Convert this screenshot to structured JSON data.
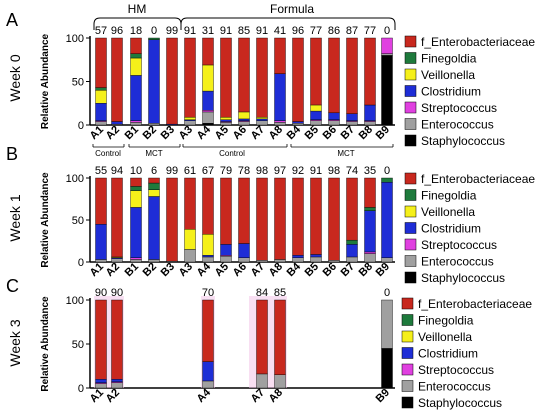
{
  "colors": {
    "f_Enterobacteriaceae": "#C8281E",
    "Finegoldia": "#1E7A3C",
    "Veillonella": "#F5F01A",
    "Clostridium": "#1E2DD6",
    "Streptococcus": "#E040E0",
    "Enterococcus": "#A0A0A0",
    "Staphylococcus": "#000000"
  },
  "group_labels": [
    "HM",
    "Formula"
  ],
  "legend_labels": [
    "f_Enterobacteriaceae",
    "Finegoldia",
    "Veillonella",
    "Clostridium",
    "Streptococcus",
    "Enterococcus",
    "Staphylococcus"
  ],
  "chart_data": [
    {
      "type": "bar",
      "stacked": true,
      "panel": "A",
      "title": "Week 0",
      "ylabel": "Relative Abundance",
      "ylim": [
        0,
        100
      ],
      "yticks": [
        0,
        50,
        100
      ],
      "categories": [
        "A1",
        "A2",
        "B1",
        "B2",
        "B3",
        "A3",
        "A4",
        "A5",
        "A6",
        "A7",
        "A8",
        "B4",
        "B5",
        "B6",
        "B7",
        "B8",
        "B9"
      ],
      "top_labels": [
        "57",
        "96",
        "18",
        "0",
        "99",
        "91",
        "31",
        "91",
        "85",
        "91",
        "41",
        "96",
        "77",
        "86",
        "87",
        "77",
        "0"
      ],
      "diet_labels": [
        {
          "text": "Control",
          "from": "A1",
          "to": "A2"
        },
        {
          "text": "MCT",
          "from": "B1",
          "to": "B3"
        },
        {
          "text": "Control",
          "from": "A3",
          "to": "A8"
        },
        {
          "text": "MCT",
          "from": "B4",
          "to": "B9"
        }
      ],
      "series": [
        {
          "name": "f_Enterobacteriaceae",
          "values": [
            57,
            96,
            18,
            0,
            99,
            91,
            31,
            91,
            85,
            91,
            41,
            96,
            77,
            86,
            87,
            77,
            0
          ]
        },
        {
          "name": "Finegoldia",
          "values": [
            3,
            0,
            5,
            2,
            0,
            0,
            0,
            0,
            0,
            0,
            0,
            0,
            0,
            0,
            0,
            0,
            0
          ]
        },
        {
          "name": "Veillonella",
          "values": [
            15,
            0,
            20,
            0,
            0,
            3,
            30,
            3,
            8,
            2,
            0,
            0,
            7,
            0,
            0,
            0,
            0
          ]
        },
        {
          "name": "Clostridium",
          "values": [
            20,
            3,
            52,
            96,
            1,
            1,
            22,
            2,
            2,
            2,
            54,
            2,
            10,
            8,
            8,
            18,
            0
          ]
        },
        {
          "name": "Streptococcus",
          "values": [
            1,
            0,
            2,
            0,
            0,
            0,
            2,
            1,
            1,
            0,
            2,
            0,
            1,
            1,
            1,
            1,
            18
          ]
        },
        {
          "name": "Enterococcus",
          "values": [
            4,
            1,
            3,
            2,
            0,
            5,
            13,
            3,
            4,
            5,
            3,
            2,
            5,
            5,
            4,
            4,
            2
          ]
        },
        {
          "name": "Staphylococcus",
          "values": [
            0,
            0,
            0,
            0,
            0,
            0,
            2,
            0,
            0,
            0,
            0,
            0,
            0,
            0,
            0,
            0,
            80
          ]
        }
      ]
    },
    {
      "type": "bar",
      "stacked": true,
      "panel": "B",
      "title": "Week 1",
      "ylabel": "Relative Abundance",
      "ylim": [
        0,
        100
      ],
      "yticks": [
        0,
        50,
        100
      ],
      "categories": [
        "A1",
        "A2",
        "B1",
        "B2",
        "B3",
        "A3",
        "A4",
        "A5",
        "A6",
        "A7",
        "A8",
        "B4",
        "B5",
        "B6",
        "B7",
        "B8",
        "B9"
      ],
      "top_labels": [
        "55",
        "94",
        "10",
        "6",
        "99",
        "61",
        "67",
        "79",
        "78",
        "98",
        "97",
        "92",
        "91",
        "98",
        "74",
        "35",
        "0"
      ],
      "series": [
        {
          "name": "f_Enterobacteriaceae",
          "values": [
            55,
            94,
            10,
            6,
            99,
            61,
            67,
            79,
            78,
            98,
            97,
            92,
            91,
            98,
            74,
            35,
            0
          ]
        },
        {
          "name": "Finegoldia",
          "values": [
            0,
            0,
            5,
            8,
            0,
            0,
            0,
            0,
            0,
            0,
            0,
            0,
            0,
            0,
            5,
            4,
            5
          ]
        },
        {
          "name": "Veillonella",
          "values": [
            0,
            1,
            20,
            8,
            0,
            24,
            25,
            0,
            0,
            0,
            0,
            0,
            0,
            0,
            0,
            0,
            0
          ]
        },
        {
          "name": "Clostridium",
          "values": [
            42,
            1,
            60,
            75,
            0,
            0,
            2,
            13,
            17,
            0,
            0,
            3,
            3,
            0,
            15,
            49,
            90
          ]
        },
        {
          "name": "Streptococcus",
          "values": [
            0,
            0,
            2,
            0,
            0,
            0,
            0,
            1,
            0,
            0,
            0,
            0,
            0,
            0,
            0,
            2,
            0
          ]
        },
        {
          "name": "Enterococcus",
          "values": [
            3,
            4,
            3,
            3,
            1,
            15,
            6,
            7,
            5,
            2,
            3,
            5,
            6,
            2,
            6,
            10,
            5
          ]
        },
        {
          "name": "Staphylococcus",
          "values": [
            0,
            0,
            0,
            0,
            0,
            0,
            0,
            0,
            0,
            0,
            0,
            0,
            0,
            0,
            0,
            0,
            0
          ]
        }
      ]
    },
    {
      "type": "bar",
      "stacked": true,
      "panel": "C",
      "title": "Week 3",
      "ylabel": "Relative Abundance",
      "ylim": [
        0,
        100
      ],
      "yticks": [
        0,
        50,
        100
      ],
      "categories": [
        "A1",
        "A2",
        "A4",
        "A7",
        "A8",
        "B9"
      ],
      "top_labels": [
        "90",
        "90",
        "70",
        "84",
        "85",
        "0"
      ],
      "series": [
        {
          "name": "f_Enterobacteriaceae",
          "values": [
            90,
            90,
            70,
            84,
            85,
            0
          ]
        },
        {
          "name": "Finegoldia",
          "values": [
            0,
            0,
            0,
            0,
            0,
            0
          ]
        },
        {
          "name": "Veillonella",
          "values": [
            0,
            0,
            0,
            0,
            0,
            0
          ]
        },
        {
          "name": "Clostridium",
          "values": [
            4,
            3,
            22,
            0,
            0,
            0
          ]
        },
        {
          "name": "Streptococcus",
          "values": [
            1,
            1,
            0,
            0,
            0,
            0
          ]
        },
        {
          "name": "Enterococcus",
          "values": [
            5,
            6,
            8,
            16,
            15,
            55
          ]
        },
        {
          "name": "Staphylococcus",
          "values": [
            0,
            0,
            0,
            0,
            0,
            45
          ]
        }
      ]
    }
  ]
}
